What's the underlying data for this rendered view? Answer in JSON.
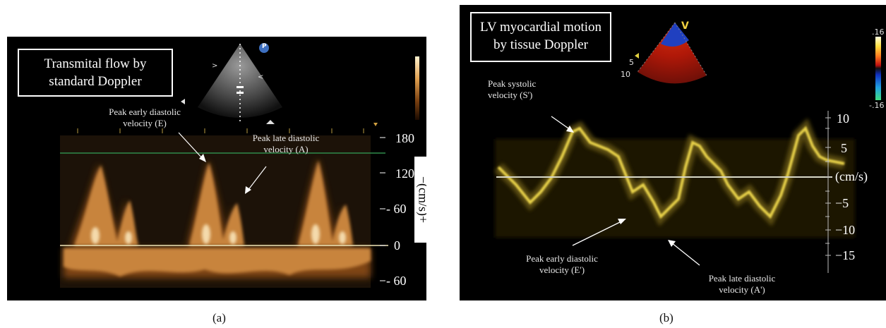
{
  "panel_a": {
    "title": "Transmital flow by\nstandard Doppler",
    "annotations": {
      "peak_early": "Peak early diastolic\nvelocity (E)",
      "peak_late": "Peak late diastolic\nvelocity (A)"
    },
    "axis_ticks": [
      "180",
      "120",
      "60",
      "0",
      "60"
    ],
    "axis_tick_prefixes": [
      "",
      "",
      "- ",
      "",
      "- "
    ],
    "unit_label": "−(cm/s)+",
    "probe_marker": "P",
    "caption": "(a)",
    "colors": {
      "doppler": "#c8843c",
      "baseline": "#f0e6b8",
      "guide": "#2f8a4a"
    }
  },
  "panel_b": {
    "title": "LV myocardial motion\nby tissue Doppler",
    "annotations": {
      "peak_systolic": "Peak systolic\nvelocity (S')",
      "peak_early": "Peak early diastolic\nvelocity (E')",
      "peak_late": "Peak late diastolic\nvelocity (A')"
    },
    "axis_ticks": [
      "10",
      "5",
      "(cm/s)",
      "−5",
      "−10",
      "−15"
    ],
    "colorbar_labels": [
      ".16",
      "-.16"
    ],
    "sector_marker": "V",
    "depth_labels": [
      "5",
      "10"
    ],
    "caption": "(b)",
    "colors": {
      "trace": "#e8d24a",
      "baseline": "#d8d8c8"
    }
  }
}
